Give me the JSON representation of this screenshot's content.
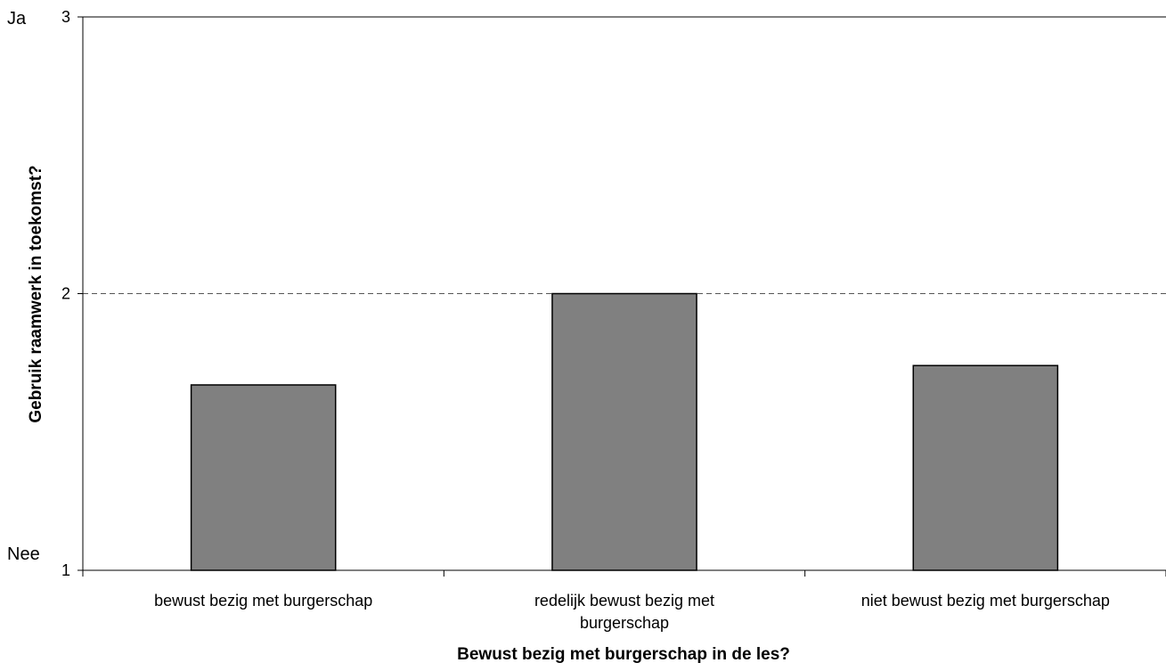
{
  "chart_data": {
    "type": "bar",
    "categories": [
      [
        "bewust bezig met burgerschap"
      ],
      [
        "redelijk bewust bezig met",
        "burgerschap"
      ],
      [
        "niet bewust bezig met burgerschap"
      ]
    ],
    "values": [
      1.67,
      2.0,
      1.74
    ],
    "title": "",
    "xlabel": "Bewust bezig met burgerschap in de les?",
    "ylabel": "Gebruik raamwerk in toekomst?",
    "ylim": [
      1,
      3
    ],
    "yticks": [
      1,
      2,
      3
    ],
    "ytick_labels": [
      "1",
      "2",
      "3"
    ],
    "y_side_labels": {
      "top": "Ja",
      "bottom": "Nee"
    },
    "reference_line": 2,
    "grid": false,
    "legend": "none",
    "colors": {
      "bar_fill": "#808080",
      "bar_stroke": "#000000",
      "axis": "#000000",
      "reference_line": "#555555"
    }
  }
}
